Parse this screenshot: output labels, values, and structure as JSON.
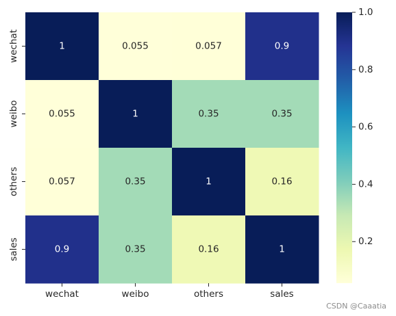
{
  "chart_data": {
    "type": "heatmap",
    "title": "",
    "x_categories": [
      "wechat",
      "weibo",
      "others",
      "sales"
    ],
    "y_categories": [
      "wechat",
      "weibo",
      "others",
      "sales"
    ],
    "values": [
      [
        1,
        0.055,
        0.057,
        0.9
      ],
      [
        0.055,
        1,
        0.35,
        0.35
      ],
      [
        0.057,
        0.35,
        1,
        0.16
      ],
      [
        0.9,
        0.35,
        0.16,
        1
      ]
    ],
    "value_labels": [
      [
        "1",
        "0.055",
        "0.057",
        "0.9"
      ],
      [
        "0.055",
        "1",
        "0.35",
        "0.35"
      ],
      [
        "0.057",
        "0.35",
        "1",
        "0.16"
      ],
      [
        "0.9",
        "0.35",
        "0.16",
        "1"
      ]
    ],
    "colormap": "YlGnBu",
    "colorbar": {
      "range": [
        0.055,
        1.0
      ],
      "ticks": [
        0.2,
        0.4,
        0.6,
        0.8,
        1.0
      ],
      "tick_labels": [
        "0.2",
        "0.4",
        "0.6",
        "0.8",
        "1.0"
      ]
    },
    "grid": false
  },
  "watermark": "CSDN @Caaatia"
}
